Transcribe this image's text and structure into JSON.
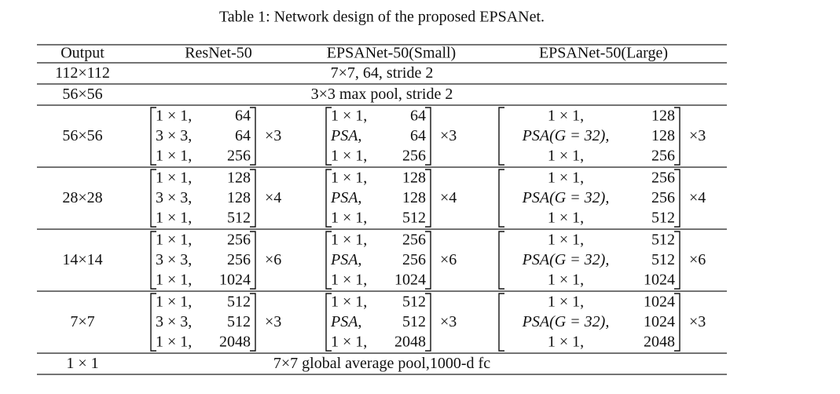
{
  "caption": "Table 1: Network design of the proposed EPSANet.",
  "table": {
    "header": [
      "Output",
      "ResNet-50",
      "EPSANet-50(Small)",
      "EPSANet-50(Large)"
    ],
    "rows": [
      {
        "output": "112×112",
        "span": "7×7, 64, stride 2"
      },
      {
        "output": "56×56",
        "span": "3×3 max pool, stride 2"
      },
      {
        "output": "56×56",
        "blocks": [
          {
            "lines": [
              [
                "1 × 1,",
                "64"
              ],
              [
                "3 × 3,",
                "64"
              ],
              [
                "1 × 1,",
                "256"
              ]
            ],
            "repeat": "×3"
          },
          {
            "lines": [
              [
                "1 × 1,",
                "64"
              ],
              [
                "PSA,",
                "64"
              ],
              [
                "1 × 1,",
                "256"
              ]
            ],
            "repeat": "×3"
          },
          {
            "lines": [
              [
                "1 × 1,",
                "128"
              ],
              [
                "PSA(G = 32),",
                "128"
              ],
              [
                "1 × 1,",
                "256"
              ]
            ],
            "repeat": "×3"
          }
        ]
      },
      {
        "output": "28×28",
        "blocks": [
          {
            "lines": [
              [
                "1 × 1,",
                "128"
              ],
              [
                "3 × 3,",
                "128"
              ],
              [
                "1 × 1,",
                "512"
              ]
            ],
            "repeat": "×4"
          },
          {
            "lines": [
              [
                "1 × 1,",
                "128"
              ],
              [
                "PSA,",
                "128"
              ],
              [
                "1 × 1,",
                "512"
              ]
            ],
            "repeat": "×4"
          },
          {
            "lines": [
              [
                "1 × 1,",
                "256"
              ],
              [
                "PSA(G = 32),",
                "256"
              ],
              [
                "1 × 1,",
                "512"
              ]
            ],
            "repeat": "×4"
          }
        ]
      },
      {
        "output": "14×14",
        "blocks": [
          {
            "lines": [
              [
                "1 × 1,",
                "256"
              ],
              [
                "3 × 3,",
                "256"
              ],
              [
                "1 × 1,",
                "1024"
              ]
            ],
            "repeat": "×6"
          },
          {
            "lines": [
              [
                "1 × 1,",
                "256"
              ],
              [
                "PSA,",
                "256"
              ],
              [
                "1 × 1,",
                "1024"
              ]
            ],
            "repeat": "×6"
          },
          {
            "lines": [
              [
                "1 × 1,",
                "512"
              ],
              [
                "PSA(G = 32),",
                "512"
              ],
              [
                "1 × 1,",
                "1024"
              ]
            ],
            "repeat": "×6"
          }
        ]
      },
      {
        "output": "7×7",
        "blocks": [
          {
            "lines": [
              [
                "1 × 1,",
                "512"
              ],
              [
                "3 × 3,",
                "512"
              ],
              [
                "1 × 1,",
                "2048"
              ]
            ],
            "repeat": "×3"
          },
          {
            "lines": [
              [
                "1 × 1,",
                "512"
              ],
              [
                "PSA,",
                "512"
              ],
              [
                "1 × 1,",
                "2048"
              ]
            ],
            "repeat": "×3"
          },
          {
            "lines": [
              [
                "1 × 1,",
                "1024"
              ],
              [
                "PSA(G = 32),",
                "1024"
              ],
              [
                "1 × 1,",
                "2048"
              ]
            ],
            "repeat": "×3"
          }
        ]
      },
      {
        "output": "1 × 1",
        "span": "7×7 global average pool,1000-d fc"
      }
    ]
  }
}
